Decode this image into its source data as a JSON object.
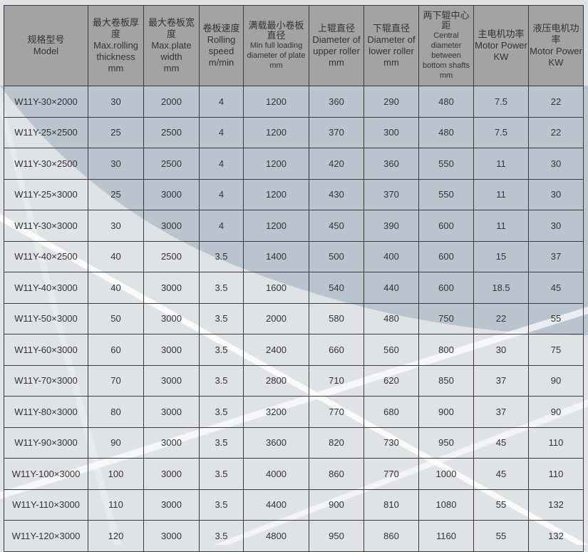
{
  "columns": [
    {
      "cn": "规格型号",
      "en": "Model"
    },
    {
      "cn": "最大卷板厚度",
      "en": "Max.rolling thickness",
      "unit": "mm"
    },
    {
      "cn": "最大卷板宽度",
      "en": "Max.plate width",
      "unit": "mm"
    },
    {
      "cn": "卷板速度",
      "en": "Rolling speed",
      "unit": "m/min"
    },
    {
      "cn": "满载最小卷板直径",
      "en": "Min full loading diameter of plate",
      "unit": "mm"
    },
    {
      "cn": "上辊直径",
      "en": "Diameter of upper roller",
      "unit": "mm"
    },
    {
      "cn": "下辊直径",
      "en": "Diameter of lower roller",
      "unit": "mm"
    },
    {
      "cn": "两下辊中心距",
      "en": "Central diameter between bottom shafts",
      "unit": "mm"
    },
    {
      "cn": "主电机功率",
      "en": "Motor Power",
      "unit": "KW"
    },
    {
      "cn": "液压电机功率",
      "en": "Motor Power",
      "unit": "KW"
    }
  ],
  "rows": [
    [
      "W11Y-30×2000",
      "30",
      "2000",
      "4",
      "1200",
      "360",
      "290",
      "480",
      "7.5",
      "22"
    ],
    [
      "W11Y-25×2500",
      "25",
      "2500",
      "4",
      "1200",
      "370",
      "300",
      "480",
      "7.5",
      "22"
    ],
    [
      "W11Y-30×2500",
      "30",
      "2500",
      "4",
      "1200",
      "420",
      "360",
      "550",
      "11",
      "30"
    ],
    [
      "W11Y-25×3000",
      "25",
      "3000",
      "4",
      "1200",
      "430",
      "370",
      "550",
      "11",
      "30"
    ],
    [
      "W11Y-30×3000",
      "30",
      "3000",
      "4",
      "1200",
      "450",
      "390",
      "600",
      "11",
      "30"
    ],
    [
      "W11Y-40×2500",
      "40",
      "2500",
      "3.5",
      "1400",
      "500",
      "400",
      "600",
      "15",
      "37"
    ],
    [
      "W11Y-40×3000",
      "40",
      "3000",
      "3.5",
      "1600",
      "540",
      "440",
      "600",
      "18.5",
      "45"
    ],
    [
      "W11Y-50×3000",
      "50",
      "3000",
      "3.5",
      "2000",
      "580",
      "480",
      "750",
      "22",
      "55"
    ],
    [
      "W11Y-60×3000",
      "60",
      "3000",
      "3.5",
      "2400",
      "660",
      "560",
      "800",
      "30",
      "75"
    ],
    [
      "W11Y-70×3000",
      "70",
      "3000",
      "3.5",
      "2800",
      "710",
      "620",
      "850",
      "37",
      "90"
    ],
    [
      "W11Y-80×3000",
      "80",
      "3000",
      "3.5",
      "3200",
      "770",
      "680",
      "900",
      "37",
      "90"
    ],
    [
      "W11Y-90×3000",
      "90",
      "3000",
      "3.5",
      "3600",
      "820",
      "730",
      "950",
      "45",
      "110"
    ],
    [
      "W11Y-100×3000",
      "100",
      "3000",
      "3.5",
      "4000",
      "860",
      "770",
      "1000",
      "45",
      "110"
    ],
    [
      "W11Y-110×3000",
      "110",
      "3000",
      "3.5",
      "4400",
      "900",
      "810",
      "1080",
      "55",
      "132"
    ],
    [
      "W11Y-120×3000",
      "120",
      "3000",
      "3.5",
      "4800",
      "950",
      "860",
      "1160",
      "55",
      "132"
    ]
  ],
  "colors": {
    "header": "#a4a2a3",
    "background": "#dfe3e6",
    "accent": "#b7c3d0"
  }
}
